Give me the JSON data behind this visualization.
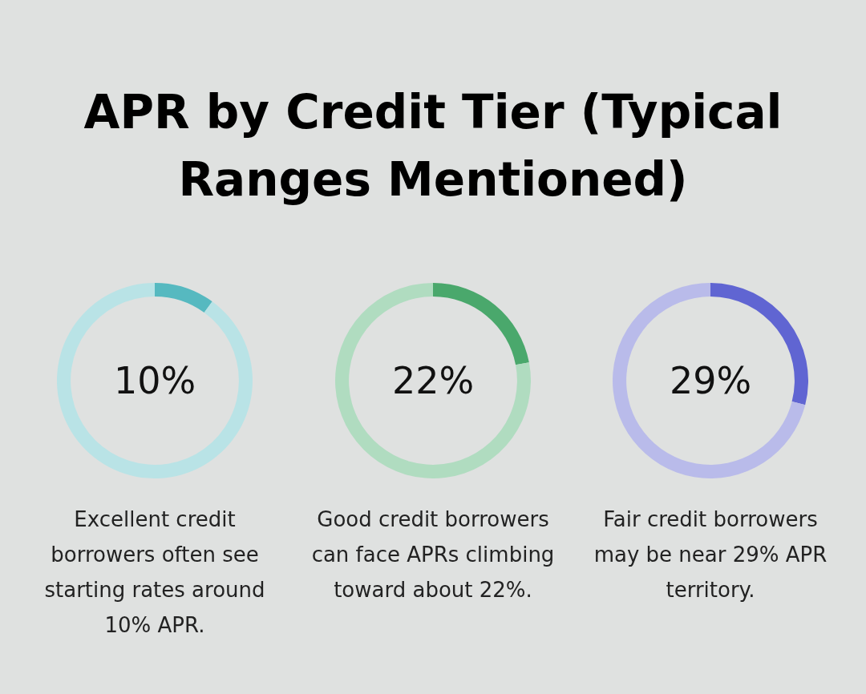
{
  "chart_data": [
    {
      "type": "donut",
      "title": "APR by Credit Tier (Typical Ranges Mentioned)",
      "categories": [
        null,
        null
      ],
      "values": [
        10,
        90
      ],
      "colors": [
        "#56b9c0",
        "#b9e3e6"
      ],
      "annotations": [
        "10%",
        "Excellent credit borrowers often see starting rates around 10% APR."
      ]
    },
    {
      "type": "donut",
      "categories": [
        null,
        null
      ],
      "values": [
        22,
        78
      ],
      "colors": [
        "#4aa86c",
        "#b0dcc0"
      ],
      "annotations": [
        "22%",
        "Good credit borrowers can face APRs climbing toward about 22%."
      ]
    },
    {
      "type": "donut",
      "categories": [
        null,
        null
      ],
      "values": [
        29,
        71
      ],
      "colors": [
        "#6065d2",
        "#b9bbea"
      ],
      "annotations": [
        "29%",
        "Fair credit borrowers may be near 29% APR territory."
      ]
    }
  ]
}
